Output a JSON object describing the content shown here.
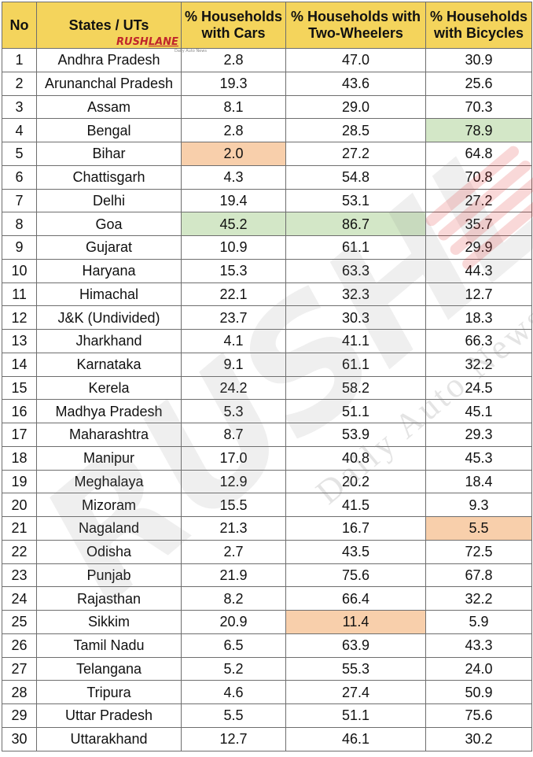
{
  "logo": {
    "text_main": "RUSH",
    "text_accent": "LANE",
    "tagline": "Daily Auto News"
  },
  "watermark": {
    "big": "RUSHLANE",
    "sub": "Daily Auto News"
  },
  "colors": {
    "header": "#f4d45c",
    "highest": "#d3e7c7",
    "lowest": "#f8cfab",
    "border": "#6e6e6e"
  },
  "table": {
    "headers": {
      "no": "No",
      "state": "States / UTs",
      "cars": "% Households with Cars",
      "two_wheelers": "% Households with Two-Wheelers",
      "bicycles": "% Households with Bicycles"
    },
    "rows": [
      {
        "no": "1",
        "state": "Andhra Pradesh",
        "cars": "2.8",
        "two_wheelers": "47.0",
        "bicycles": "30.9"
      },
      {
        "no": "2",
        "state": "Arunanchal Pradesh",
        "cars": "19.3",
        "two_wheelers": "43.6",
        "bicycles": "25.6"
      },
      {
        "no": "3",
        "state": "Assam",
        "cars": "8.1",
        "two_wheelers": "29.0",
        "bicycles": "70.3"
      },
      {
        "no": "4",
        "state": "Bengal",
        "cars": "2.8",
        "two_wheelers": "28.5",
        "bicycles": "78.9",
        "hl_bicycles": "green"
      },
      {
        "no": "5",
        "state": "Bihar",
        "cars": "2.0",
        "two_wheelers": "27.2",
        "bicycles": "64.8",
        "hl_cars": "orange"
      },
      {
        "no": "6",
        "state": "Chattisgarh",
        "cars": "4.3",
        "two_wheelers": "54.8",
        "bicycles": "70.8"
      },
      {
        "no": "7",
        "state": "Delhi",
        "cars": "19.4",
        "two_wheelers": "53.1",
        "bicycles": "27.2"
      },
      {
        "no": "8",
        "state": "Goa",
        "cars": "45.2",
        "two_wheelers": "86.7",
        "bicycles": "35.7",
        "hl_cars": "green",
        "hl_two_wheelers": "green"
      },
      {
        "no": "9",
        "state": "Gujarat",
        "cars": "10.9",
        "two_wheelers": "61.1",
        "bicycles": "29.9"
      },
      {
        "no": "10",
        "state": "Haryana",
        "cars": "15.3",
        "two_wheelers": "63.3",
        "bicycles": "44.3"
      },
      {
        "no": "11",
        "state": "Himachal",
        "cars": "22.1",
        "two_wheelers": "32.3",
        "bicycles": "12.7"
      },
      {
        "no": "12",
        "state": "J&K (Undivided)",
        "cars": "23.7",
        "two_wheelers": "30.3",
        "bicycles": "18.3"
      },
      {
        "no": "13",
        "state": "Jharkhand",
        "cars": "4.1",
        "two_wheelers": "41.1",
        "bicycles": "66.3"
      },
      {
        "no": "14",
        "state": "Karnataka",
        "cars": "9.1",
        "two_wheelers": "61.1",
        "bicycles": "32.2"
      },
      {
        "no": "15",
        "state": "Kerela",
        "cars": "24.2",
        "two_wheelers": "58.2",
        "bicycles": "24.5"
      },
      {
        "no": "16",
        "state": "Madhya Pradesh",
        "cars": "5.3",
        "two_wheelers": "51.1",
        "bicycles": "45.1"
      },
      {
        "no": "17",
        "state": "Maharashtra",
        "cars": "8.7",
        "two_wheelers": "53.9",
        "bicycles": "29.3"
      },
      {
        "no": "18",
        "state": "Manipur",
        "cars": "17.0",
        "two_wheelers": "40.8",
        "bicycles": "45.3"
      },
      {
        "no": "19",
        "state": "Meghalaya",
        "cars": "12.9",
        "two_wheelers": "20.2",
        "bicycles": "18.4"
      },
      {
        "no": "20",
        "state": "Mizoram",
        "cars": "15.5",
        "two_wheelers": "41.5",
        "bicycles": "9.3"
      },
      {
        "no": "21",
        "state": "Nagaland",
        "cars": "21.3",
        "two_wheelers": "16.7",
        "bicycles": "5.5",
        "hl_bicycles": "orange"
      },
      {
        "no": "22",
        "state": "Odisha",
        "cars": "2.7",
        "two_wheelers": "43.5",
        "bicycles": "72.5"
      },
      {
        "no": "23",
        "state": "Punjab",
        "cars": "21.9",
        "two_wheelers": "75.6",
        "bicycles": "67.8"
      },
      {
        "no": "24",
        "state": "Rajasthan",
        "cars": "8.2",
        "two_wheelers": "66.4",
        "bicycles": "32.2"
      },
      {
        "no": "25",
        "state": "Sikkim",
        "cars": "20.9",
        "two_wheelers": "11.4",
        "bicycles": "5.9",
        "hl_two_wheelers": "orange"
      },
      {
        "no": "26",
        "state": "Tamil Nadu",
        "cars": "6.5",
        "two_wheelers": "63.9",
        "bicycles": "43.3"
      },
      {
        "no": "27",
        "state": "Telangana",
        "cars": "5.2",
        "two_wheelers": "55.3",
        "bicycles": "24.0"
      },
      {
        "no": "28",
        "state": "Tripura",
        "cars": "4.6",
        "two_wheelers": "27.4",
        "bicycles": "50.9"
      },
      {
        "no": "29",
        "state": "Uttar Pradesh",
        "cars": "5.5",
        "two_wheelers": "51.1",
        "bicycles": "75.6"
      },
      {
        "no": "30",
        "state": "Uttarakhand",
        "cars": "12.7",
        "two_wheelers": "46.1",
        "bicycles": "30.2"
      }
    ]
  }
}
